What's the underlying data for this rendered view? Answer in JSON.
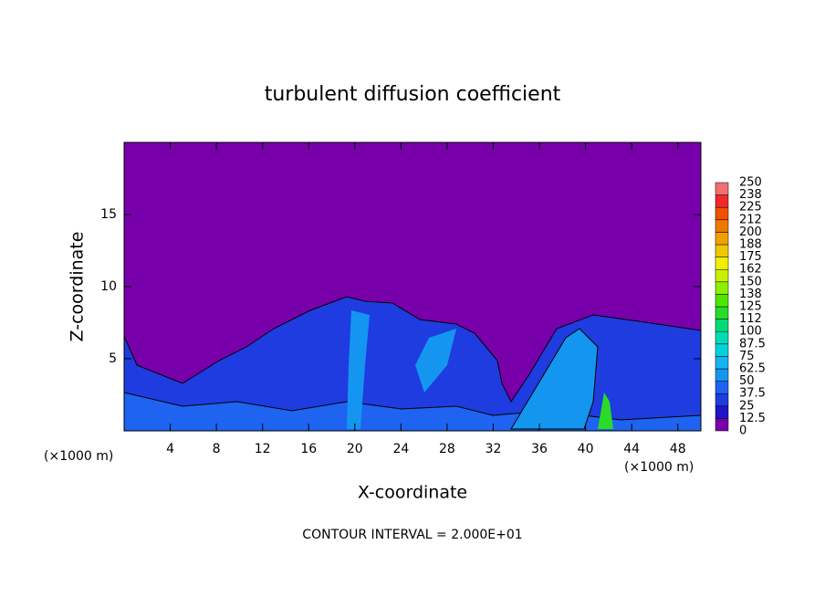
{
  "chart_data": {
    "type": "contour",
    "title": "turbulent diffusion coefficient",
    "x_label": "X-coordinate",
    "y_label": "Z-coordinate",
    "x_unit": "(×1000 m)",
    "note": "CONTOUR INTERVAL = 2.000E+01",
    "xlim": [
      0,
      50
    ],
    "xticks": [
      4,
      8,
      12,
      16,
      20,
      24,
      28,
      32,
      36,
      40,
      44,
      48
    ],
    "ylim": [
      0,
      20
    ],
    "yticks": [
      5,
      10,
      15
    ],
    "colorbar": {
      "levels": [
        0,
        12.5,
        25,
        37.5,
        50,
        62.5,
        75,
        87.5,
        100,
        112,
        125,
        138,
        150,
        162,
        175,
        188,
        200,
        212,
        225,
        238,
        250
      ],
      "colors": [
        "#7800aa",
        "#1e14c8",
        "#1e3ce0",
        "#1e64f0",
        "#1496f0",
        "#14b4f0",
        "#00d2dc",
        "#00dcb4",
        "#00dc78",
        "#28dc28",
        "#50e600",
        "#8cf000",
        "#c8f000",
        "#f0f000",
        "#f0c800",
        "#f0a000",
        "#f07800",
        "#f05000",
        "#f02828",
        "#f07070"
      ]
    }
  }
}
